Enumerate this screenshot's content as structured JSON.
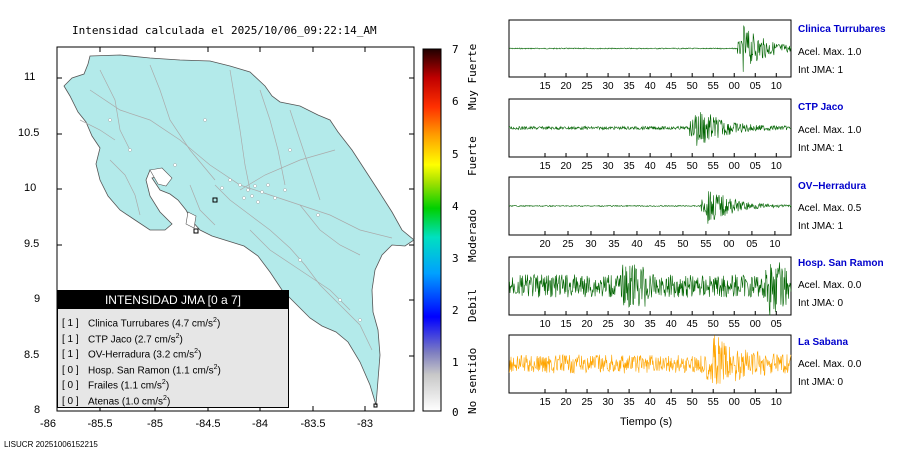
{
  "map": {
    "title": "Intensidad calculada el 2025/10/06_09:22:14_AM",
    "lat_ticks": [
      "11",
      "10.5",
      "10",
      "9.5",
      "9",
      "8.5",
      "8"
    ],
    "lon_ticks": [
      "-86",
      "-85.5",
      "-85",
      "-84.5",
      "-84",
      "-83.5",
      "-83"
    ],
    "land_color": "#b3eaea",
    "road_color": "#aaaaaa"
  },
  "colorbar": {
    "ticks": [
      "7",
      "6",
      "5",
      "4",
      "3",
      "2",
      "1",
      "0"
    ],
    "labels": [
      "Muy Fuerte",
      "Fuerte",
      "Moderado",
      "Debil",
      "No sentido"
    ]
  },
  "legend": {
    "title": "INTENSIDAD JMA [0 a 7]",
    "rows": [
      {
        "bracket": "[ 1 ]",
        "text": "Clinica Turrubares (4.7 cm/s",
        "sup": "2",
        "close": ")"
      },
      {
        "bracket": "[ 1 ]",
        "text": "CTP Jaco (2.7 cm/s",
        "sup": "2",
        "close": ")"
      },
      {
        "bracket": "[ 1 ]",
        "text": "OV-Herradura (3.2 cm/s",
        "sup": "2",
        "close": ")"
      },
      {
        "bracket": "[ 0 ]",
        "text": "Hosp. San Ramon (1.1 cm/s",
        "sup": "2",
        "close": ")"
      },
      {
        "bracket": "[ 0 ]",
        "text": "Frailes (1.1 cm/s",
        "sup": "2",
        "close": ")"
      },
      {
        "bracket": "[ 0 ]",
        "text": "Atenas (1.0 cm/s",
        "sup": "2",
        "close": ")"
      }
    ]
  },
  "stations": [
    {
      "name": "Clinica Turrubares",
      "acel": "Acel. Max. 1.0",
      "int": "Int JMA: 1",
      "color": "#006400",
      "ticks": [
        "15",
        "20",
        "25",
        "30",
        "35",
        "40",
        "45",
        "50",
        "55",
        "00",
        "05",
        "10"
      ]
    },
    {
      "name": "CTP Jaco",
      "acel": "Acel. Max. 1.0",
      "int": "Int JMA: 1",
      "color": "#006400",
      "ticks": [
        "15",
        "20",
        "25",
        "30",
        "35",
        "40",
        "45",
        "50",
        "55",
        "00",
        "05",
        "10"
      ]
    },
    {
      "name": "OV−Herradura",
      "acel": "Acel. Max. 0.5",
      "int": "Int JMA: 1",
      "color": "#006400",
      "ticks": [
        "20",
        "25",
        "30",
        "35",
        "40",
        "45",
        "50",
        "55",
        "00",
        "05",
        "10"
      ]
    },
    {
      "name": "Hosp. San Ramon",
      "acel": "Acel. Max. 0.0",
      "int": "Int JMA: 0",
      "color": "#006400",
      "ticks": [
        "10",
        "15",
        "20",
        "25",
        "30",
        "35",
        "40",
        "45",
        "50",
        "55",
        "00",
        "05"
      ]
    },
    {
      "name": "La Sabana",
      "acel": "Acel. Max. 0.0",
      "int": "Int JMA: 0",
      "color": "#ffa500",
      "ticks": [
        "15",
        "20",
        "25",
        "30",
        "35",
        "40",
        "45",
        "50",
        "55",
        "00",
        "05",
        "10"
      ]
    }
  ],
  "xaxis_title": "Tiempo (s)",
  "footer": "LISUCR 20251006152215"
}
